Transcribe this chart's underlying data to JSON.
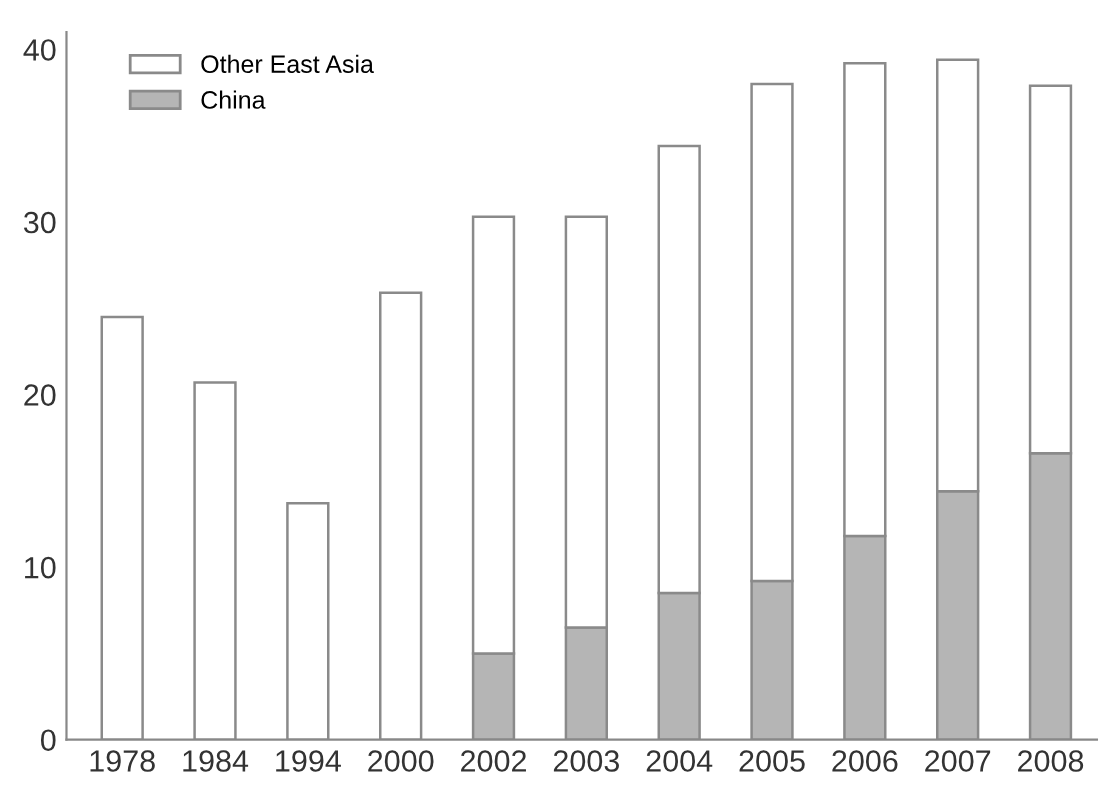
{
  "chart_data": {
    "type": "bar",
    "stacked": true,
    "categories": [
      "1978",
      "1984",
      "1994",
      "2000",
      "2002",
      "2003",
      "2004",
      "2005",
      "2006",
      "2007",
      "2008"
    ],
    "series": [
      {
        "name": "China",
        "color": "#b5b5b5",
        "values": [
          null,
          null,
          null,
          null,
          5.0,
          6.5,
          8.5,
          9.2,
          11.8,
          14.4,
          16.6
        ]
      },
      {
        "name": "Other East Asia",
        "color": "#ffffff",
        "values": [
          24.5,
          20.7,
          13.7,
          25.9,
          25.3,
          23.8,
          25.9,
          28.8,
          27.4,
          25.0,
          21.3
        ]
      }
    ],
    "ylim": [
      0,
      41
    ],
    "yticks": [
      0,
      10,
      20,
      30,
      40
    ],
    "grid": false,
    "legend": "top left"
  }
}
